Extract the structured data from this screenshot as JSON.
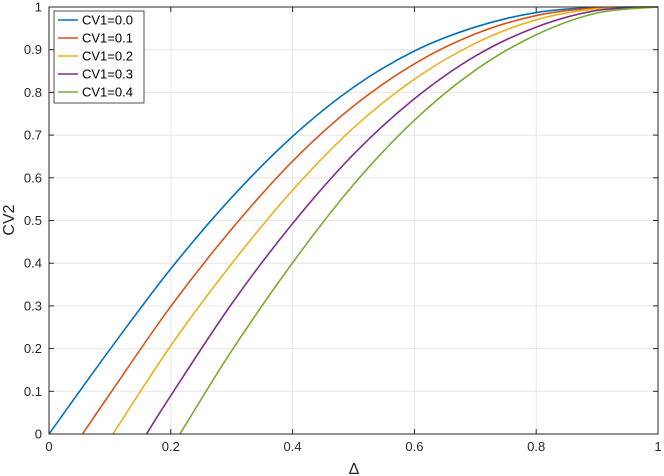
{
  "chart_data": {
    "type": "line",
    "title": "",
    "xlabel": "Δ",
    "ylabel": "CV2",
    "xlim": [
      0,
      1
    ],
    "ylim": [
      0,
      1
    ],
    "xticks": [
      "0",
      "0.2",
      "0.4",
      "0.6",
      "0.8",
      "1"
    ],
    "yticks": [
      "0",
      "0.1",
      "0.2",
      "0.3",
      "0.4",
      "0.5",
      "0.6",
      "0.7",
      "0.8",
      "0.9",
      "1"
    ],
    "grid": true,
    "legend_position": "top-left",
    "series": [
      {
        "name": "CV1=0.0",
        "color": "#0072BD",
        "x": [
          0,
          0.1,
          0.2,
          0.3,
          0.4,
          0.5,
          0.6,
          0.7,
          0.8,
          0.9,
          1.0
        ],
        "y": [
          0,
          0.198,
          0.387,
          0.554,
          0.697,
          0.812,
          0.897,
          0.953,
          0.987,
          0.999,
          1.0
        ]
      },
      {
        "name": "CV1=0.1",
        "color": "#D95319",
        "x": [
          0.055,
          0.1,
          0.2,
          0.3,
          0.4,
          0.5,
          0.6,
          0.7,
          0.8,
          0.9,
          1.0
        ],
        "y": [
          0,
          0.094,
          0.299,
          0.48,
          0.639,
          0.768,
          0.867,
          0.937,
          0.98,
          0.998,
          1.0
        ]
      },
      {
        "name": "CV1=0.2",
        "color": "#EDB120",
        "x": [
          0.105,
          0.2,
          0.3,
          0.4,
          0.5,
          0.6,
          0.7,
          0.8,
          0.9,
          1.0
        ],
        "y": [
          0,
          0.207,
          0.399,
          0.571,
          0.717,
          0.831,
          0.915,
          0.97,
          0.996,
          1.0
        ]
      },
      {
        "name": "CV1=0.3",
        "color": "#7E2F8E",
        "x": [
          0.16,
          0.2,
          0.3,
          0.4,
          0.5,
          0.6,
          0.7,
          0.8,
          0.9,
          1.0
        ],
        "y": [
          0,
          0.09,
          0.305,
          0.493,
          0.655,
          0.785,
          0.885,
          0.953,
          0.992,
          1.0
        ]
      },
      {
        "name": "CV1=0.4",
        "color": "#77AC30",
        "x": [
          0.215,
          0.3,
          0.4,
          0.5,
          0.6,
          0.7,
          0.8,
          0.9,
          1.0
        ],
        "y": [
          0,
          0.195,
          0.401,
          0.584,
          0.735,
          0.852,
          0.935,
          0.986,
          1.0
        ]
      }
    ]
  }
}
